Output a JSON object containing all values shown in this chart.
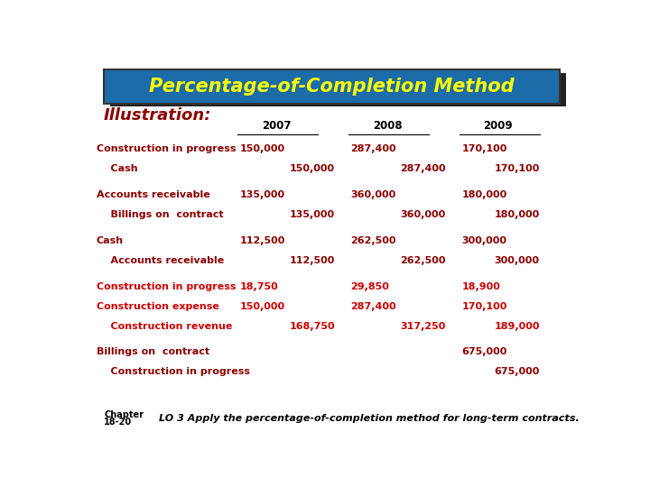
{
  "title": "Percentage-of-Completion Method",
  "title_color": "#FFFF00",
  "title_bg_color": "#1B6CA8",
  "title_border_color": "#333333",
  "subtitle": "Illustration:",
  "subtitle_color": "#8B0000",
  "table_text_color": "#8B0000",
  "black_color": "#000000",
  "red_color": "#CC0000",
  "bg_color": "#FFFFFF",
  "year_headers": [
    "2007",
    "2008",
    "2009"
  ],
  "footer_chapter": "Chapter\n18-20",
  "footer_text": "LO 3 Apply the percentage-of-completion method for long-term contracts.",
  "rows": [
    {
      "label": "Construction in progress",
      "color": "dark",
      "indent": false,
      "values": [
        [
          "150,000",
          "",
          ""
        ],
        [
          "287,400",
          "",
          ""
        ],
        [
          "170,100",
          "",
          ""
        ]
      ]
    },
    {
      "label": "    Cash",
      "color": "dark",
      "indent": true,
      "values": [
        [
          "",
          "150,000",
          ""
        ],
        [
          "",
          "287,400",
          ""
        ],
        [
          "",
          "",
          "170,100"
        ]
      ]
    },
    {
      "label": "Accounts receivable",
      "color": "dark",
      "indent": false,
      "values": [
        [
          "135,000",
          "",
          ""
        ],
        [
          "360,000",
          "",
          ""
        ],
        [
          "180,000",
          "",
          ""
        ]
      ]
    },
    {
      "label": "    Billings on  contract",
      "color": "dark",
      "indent": true,
      "values": [
        [
          "",
          "135,000",
          ""
        ],
        [
          "",
          "360,000",
          ""
        ],
        [
          "",
          "",
          "180,000"
        ]
      ]
    },
    {
      "label": "Cash",
      "color": "dark",
      "indent": false,
      "values": [
        [
          "112,500",
          "",
          ""
        ],
        [
          "262,500",
          "",
          ""
        ],
        [
          "300,000",
          "",
          ""
        ]
      ]
    },
    {
      "label": "    Accounts receivable",
      "color": "dark",
      "indent": true,
      "values": [
        [
          "",
          "112,500",
          ""
        ],
        [
          "",
          "262,500",
          ""
        ],
        [
          "",
          "",
          "300,000"
        ]
      ]
    },
    {
      "label": "Construction in progress",
      "color": "red",
      "indent": false,
      "values": [
        [
          "18,750",
          "",
          ""
        ],
        [
          "29,850",
          "",
          ""
        ],
        [
          "18,900",
          "",
          ""
        ]
      ]
    },
    {
      "label": "Construction expense",
      "color": "red",
      "indent": false,
      "values": [
        [
          "150,000",
          "",
          ""
        ],
        [
          "287,400",
          "",
          ""
        ],
        [
          "170,100",
          "",
          ""
        ]
      ]
    },
    {
      "label": "    Construction revenue",
      "color": "red",
      "indent": true,
      "values": [
        [
          "",
          "168,750",
          ""
        ],
        [
          "",
          "317,250",
          ""
        ],
        [
          "",
          "",
          "189,000"
        ]
      ]
    },
    {
      "label": "Billings on  contract",
      "color": "dark",
      "indent": false,
      "values": [
        [
          "",
          "",
          ""
        ],
        [
          "",
          "",
          ""
        ],
        [
          "675,000",
          "",
          ""
        ]
      ]
    },
    {
      "label": "    Construction in progress",
      "color": "dark",
      "indent": true,
      "values": [
        [
          "",
          "",
          ""
        ],
        [
          "",
          "",
          ""
        ],
        [
          "",
          "",
          "675,000"
        ]
      ]
    }
  ],
  "group_ends": [
    2,
    4,
    6,
    9,
    11
  ],
  "col_x": {
    "label": 0.03,
    "d07": 0.315,
    "c07": 0.405,
    "d08": 0.535,
    "c08": 0.625,
    "d09": 0.755,
    "c09": 0.845
  }
}
